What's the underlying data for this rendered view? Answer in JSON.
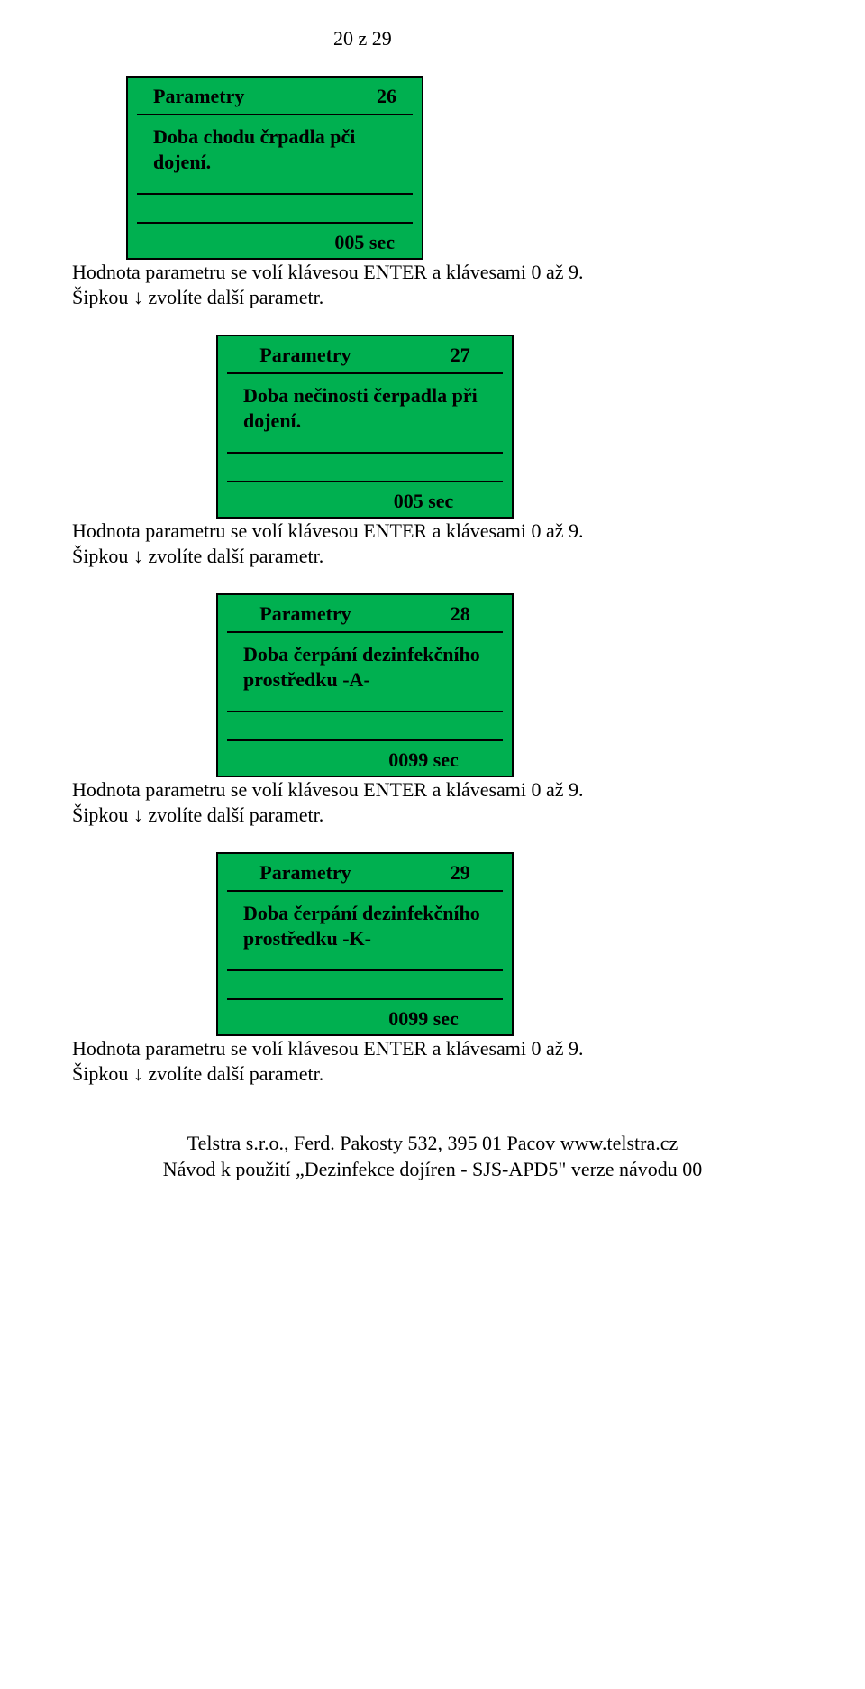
{
  "page_header": "20 z 29",
  "panels": [
    {
      "title": "Parametry",
      "number": "26",
      "body": "Doba chodu črpadla pči dojení.",
      "value": "005 sec"
    },
    {
      "title": "Parametry",
      "number": "27",
      "body": "Doba nečinosti čerpadla při dojení.",
      "value": "005 sec"
    },
    {
      "title": "Parametry",
      "number": "28",
      "body": "Doba čerpání dezinfekčního prostředku  -A-",
      "value": "0099 sec"
    },
    {
      "title": "Parametry",
      "number": "29",
      "body": "Doba čerpání dezinfekčního prostředku  -K-",
      "value": "0099 sec"
    }
  ],
  "description_line1": "Hodnota parametru se volí klávesou ENTER a  klávesami 0 až 9.",
  "description_line2": "Šipkou ↓ zvolíte další parametr.",
  "footer_line1": "Telstra s.r.o., Ferd. Pakosty 532, 395 01  Pacov  www.telstra.cz",
  "footer_line2": "Návod k použití  „Dezinfekce dojíren  - SJS-APD5\" verze návodu 00",
  "panel_style": {
    "background_color": "#00b050",
    "border_color": "#000000",
    "border_width": 2,
    "title_fontsize": 22,
    "body_fontsize": 22,
    "font_weight": "bold"
  }
}
